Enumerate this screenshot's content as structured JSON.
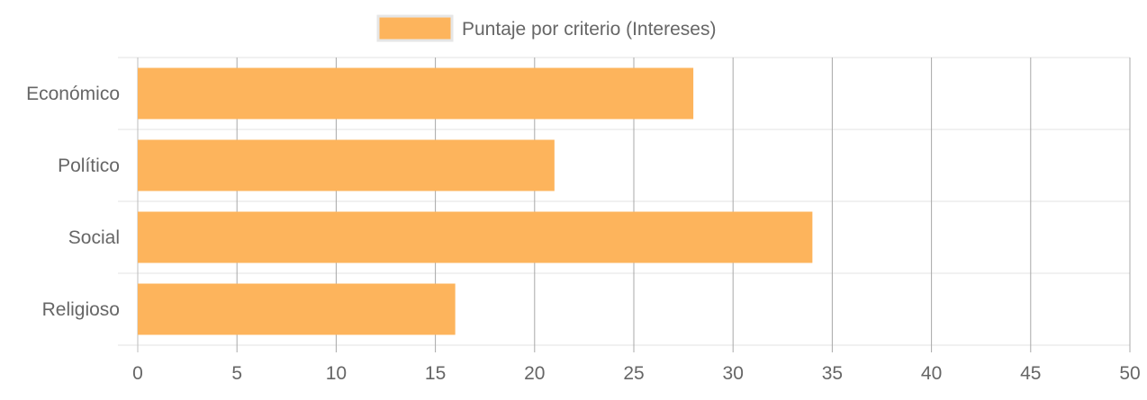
{
  "chart_data": {
    "type": "bar",
    "orientation": "horizontal",
    "categories": [
      "Económico",
      "Político",
      "Social",
      "Religioso"
    ],
    "series": [
      {
        "name": "Puntaje por criterio (Intereses)",
        "values": [
          28,
          21,
          34,
          16
        ],
        "color": "#FDB45C"
      }
    ],
    "xlim": [
      0,
      50
    ],
    "xticks": [
      "0",
      "5",
      "10",
      "15",
      "20",
      "25",
      "30",
      "35",
      "40",
      "45",
      "50"
    ],
    "grid": true,
    "legend": "top-center"
  }
}
